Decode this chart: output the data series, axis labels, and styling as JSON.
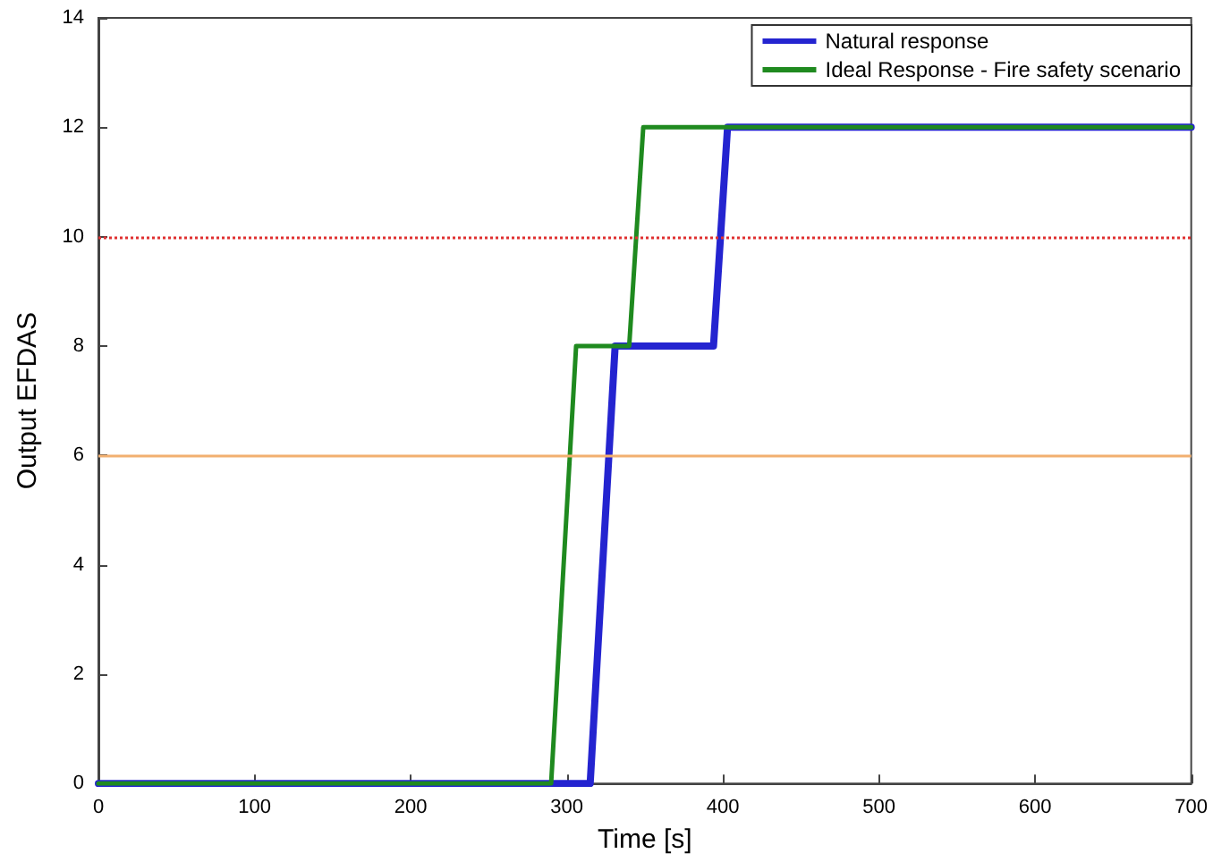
{
  "chart_data": {
    "type": "line",
    "xlabel": "Time [s]",
    "ylabel": "Output EFDAS",
    "xlim": [
      0,
      700
    ],
    "xticks": [
      0,
      100,
      200,
      300,
      400,
      500,
      600,
      700
    ],
    "ylim": [
      0,
      14
    ],
    "yticks": [
      0,
      2,
      4,
      6,
      8,
      10,
      12,
      14
    ],
    "series": [
      {
        "name": "Natural response",
        "color": "#2424d0",
        "x": [
          0,
          315,
          331,
          394,
          403,
          700
        ],
        "values": [
          0,
          0,
          8,
          8,
          12,
          12
        ]
      },
      {
        "name": "Ideal Response - Fire safety scenario",
        "color": "#1f8a1f",
        "x": [
          0,
          290,
          306,
          340,
          349,
          700
        ],
        "values": [
          0,
          0,
          8,
          8,
          12,
          12
        ]
      }
    ],
    "ref_lines": [
      {
        "axis": "y",
        "value": 10,
        "color": "#e03030",
        "line_style": "dotted"
      },
      {
        "axis": "y",
        "value": 6,
        "color": "#f2b070",
        "line_style": "solid"
      }
    ],
    "legend": "top right",
    "marker": "none",
    "line_style": "solid"
  }
}
